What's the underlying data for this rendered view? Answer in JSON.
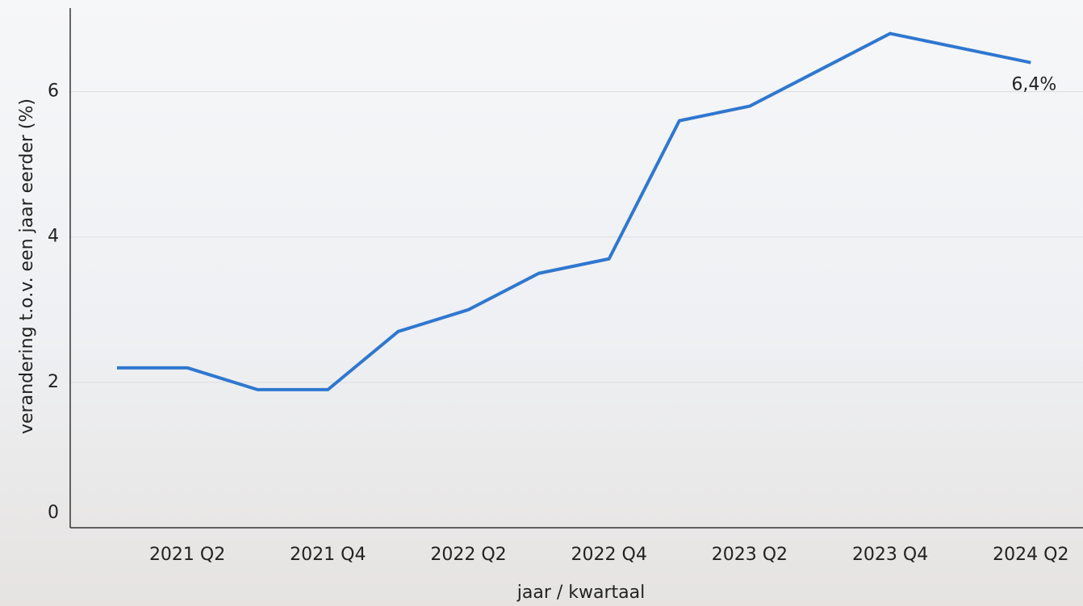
{
  "chart_data": {
    "type": "line",
    "x_label": "jaar / kwartaal",
    "y_label": "verandering t.o.v. een jaar eerder (%)",
    "categories": [
      null,
      "2021 Q2",
      null,
      "2021 Q4",
      null,
      "2022 Q2",
      null,
      "2022 Q4",
      null,
      "2023 Q2",
      null,
      "2023 Q4",
      null,
      "2024 Q2"
    ],
    "series": [
      {
        "name": "verandering",
        "color": "#2f77d0",
        "values": [
          2.2,
          2.2,
          1.9,
          1.9,
          2.7,
          3.0,
          3.5,
          3.7,
          5.6,
          5.8,
          6.3,
          6.8,
          6.6,
          6.4
        ],
        "value_labels": [
          null,
          null,
          null,
          null,
          null,
          null,
          null,
          null,
          null,
          null,
          null,
          null,
          null,
          "6,4%"
        ]
      }
    ],
    "ylim": [
      0,
      7.15
    ],
    "yticks": [
      0,
      2,
      4,
      6
    ],
    "grid": true
  }
}
